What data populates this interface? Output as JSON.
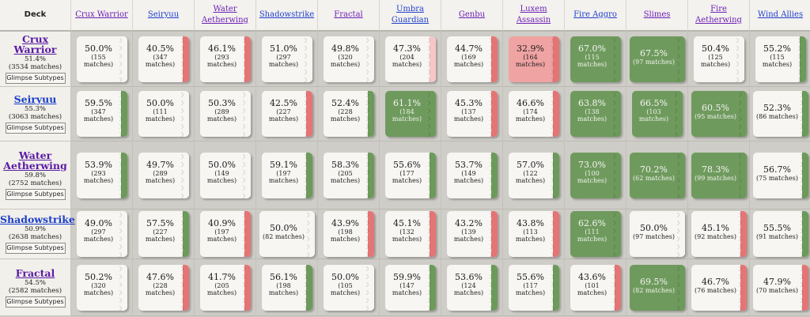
{
  "header": {
    "deck_label": "Deck",
    "columns": [
      {
        "label": "Crux Warrior",
        "color": "purple"
      },
      {
        "label": "Seiryuu",
        "color": "blue"
      },
      {
        "label": "Water Aetherwing",
        "color": "purple"
      },
      {
        "label": "Shadowstrike",
        "color": "blue"
      },
      {
        "label": "Fractal",
        "color": "purple"
      },
      {
        "label": "Umbra Guardian",
        "color": "blue"
      },
      {
        "label": "Genbu",
        "color": "purple"
      },
      {
        "label": "Luxem Assassin",
        "color": "purple"
      },
      {
        "label": "Fire Aggro",
        "color": "blue"
      },
      {
        "label": "Slimes",
        "color": "purple"
      },
      {
        "label": "Fire Aetherwing",
        "color": "purple"
      },
      {
        "label": "Wind Allies",
        "color": "blue"
      }
    ]
  },
  "glimpse_label": "Glimpse Subtypes",
  "rows": [
    {
      "name": "Crux Warrior",
      "color": "purple",
      "winrate": "51.4%",
      "matches": "(3534 matches)",
      "cells": [
        {
          "pct": "50.0%",
          "cnt": "(155 matches)",
          "bg": "white",
          "strip": "white"
        },
        {
          "pct": "40.5%",
          "cnt": "(347 matches)",
          "bg": "white",
          "strip": "red"
        },
        {
          "pct": "46.1%",
          "cnt": "(293 matches)",
          "bg": "white",
          "strip": "red"
        },
        {
          "pct": "51.0%",
          "cnt": "(297 matches)",
          "bg": "white",
          "strip": "white"
        },
        {
          "pct": "49.8%",
          "cnt": "(320 matches)",
          "bg": "white",
          "strip": "white"
        },
        {
          "pct": "47.3%",
          "cnt": "(204 matches)",
          "bg": "white",
          "strip": "pink"
        },
        {
          "pct": "44.7%",
          "cnt": "(169 matches)",
          "bg": "white",
          "strip": "red"
        },
        {
          "pct": "32.9%",
          "cnt": "(164 matches)",
          "bg": "red",
          "strip": "red"
        },
        {
          "pct": "67.0%",
          "cnt": "(115 matches)",
          "bg": "green",
          "strip": "green"
        },
        {
          "pct": "67.5%",
          "cnt": "(97 matches)",
          "bg": "green",
          "strip": "green",
          "compact": true
        },
        {
          "pct": "50.4%",
          "cnt": "(125 matches)",
          "bg": "white",
          "strip": "white"
        },
        {
          "pct": "55.2%",
          "cnt": "(115 matches)",
          "bg": "white",
          "strip": "green"
        }
      ]
    },
    {
      "name": "Seiryuu",
      "color": "blue",
      "winrate": "55.3%",
      "matches": "(3063 matches)",
      "cells": [
        {
          "pct": "59.5%",
          "cnt": "(347 matches)",
          "bg": "white",
          "strip": "green"
        },
        {
          "pct": "50.0%",
          "cnt": "(111 matches)",
          "bg": "white",
          "strip": "white"
        },
        {
          "pct": "50.3%",
          "cnt": "(289 matches)",
          "bg": "white",
          "strip": "white"
        },
        {
          "pct": "42.5%",
          "cnt": "(227 matches)",
          "bg": "white",
          "strip": "red"
        },
        {
          "pct": "52.4%",
          "cnt": "(228 matches)",
          "bg": "white",
          "strip": "green"
        },
        {
          "pct": "61.1%",
          "cnt": "(184 matches)",
          "bg": "green",
          "strip": "green"
        },
        {
          "pct": "45.3%",
          "cnt": "(137 matches)",
          "bg": "white",
          "strip": "red"
        },
        {
          "pct": "46.6%",
          "cnt": "(174 matches)",
          "bg": "white",
          "strip": "red"
        },
        {
          "pct": "63.8%",
          "cnt": "(138 matches)",
          "bg": "green",
          "strip": "green"
        },
        {
          "pct": "66.5%",
          "cnt": "(103 matches)",
          "bg": "green",
          "strip": "green"
        },
        {
          "pct": "60.5%",
          "cnt": "(95 matches)",
          "bg": "green",
          "strip": "green",
          "compact": true
        },
        {
          "pct": "52.3%",
          "cnt": "(86 matches)",
          "bg": "white",
          "strip": "green",
          "compact": true
        }
      ]
    },
    {
      "name": "Water Aetherwing",
      "color": "purple",
      "winrate": "59.8%",
      "matches": "(2752 matches)",
      "cells": [
        {
          "pct": "53.9%",
          "cnt": "(293 matches)",
          "bg": "white",
          "strip": "green"
        },
        {
          "pct": "49.7%",
          "cnt": "(289 matches)",
          "bg": "white",
          "strip": "white"
        },
        {
          "pct": "50.0%",
          "cnt": "(149 matches)",
          "bg": "white",
          "strip": "white"
        },
        {
          "pct": "59.1%",
          "cnt": "(197 matches)",
          "bg": "white",
          "strip": "green"
        },
        {
          "pct": "58.3%",
          "cnt": "(205 matches)",
          "bg": "white",
          "strip": "green"
        },
        {
          "pct": "55.6%",
          "cnt": "(177 matches)",
          "bg": "white",
          "strip": "green"
        },
        {
          "pct": "53.7%",
          "cnt": "(149 matches)",
          "bg": "white",
          "strip": "green"
        },
        {
          "pct": "57.0%",
          "cnt": "(122 matches)",
          "bg": "white",
          "strip": "green"
        },
        {
          "pct": "73.0%",
          "cnt": "(100 matches)",
          "bg": "green",
          "strip": "green"
        },
        {
          "pct": "70.2%",
          "cnt": "(62 matches)",
          "bg": "green",
          "strip": "green",
          "compact": true
        },
        {
          "pct": "78.3%",
          "cnt": "(99 matches)",
          "bg": "green",
          "strip": "green",
          "compact": true
        },
        {
          "pct": "56.7%",
          "cnt": "(75 matches)",
          "bg": "white",
          "strip": "green",
          "compact": true
        }
      ]
    },
    {
      "name": "Shadowstrike",
      "color": "blue",
      "winrate": "50.9%",
      "matches": "(2638 matches)",
      "cells": [
        {
          "pct": "49.0%",
          "cnt": "(297 matches)",
          "bg": "white",
          "strip": "white"
        },
        {
          "pct": "57.5%",
          "cnt": "(227 matches)",
          "bg": "white",
          "strip": "green"
        },
        {
          "pct": "40.9%",
          "cnt": "(197 matches)",
          "bg": "white",
          "strip": "red"
        },
        {
          "pct": "50.0%",
          "cnt": "(82 matches)",
          "bg": "white",
          "strip": "white",
          "compact": true
        },
        {
          "pct": "43.9%",
          "cnt": "(198 matches)",
          "bg": "white",
          "strip": "red"
        },
        {
          "pct": "45.1%",
          "cnt": "(132 matches)",
          "bg": "white",
          "strip": "red"
        },
        {
          "pct": "43.2%",
          "cnt": "(139 matches)",
          "bg": "white",
          "strip": "red"
        },
        {
          "pct": "43.8%",
          "cnt": "(113 matches)",
          "bg": "white",
          "strip": "red"
        },
        {
          "pct": "62.6%",
          "cnt": "(111 matches)",
          "bg": "green",
          "strip": "green"
        },
        {
          "pct": "50.0%",
          "cnt": "(97 matches)",
          "bg": "white",
          "strip": "white",
          "compact": true
        },
        {
          "pct": "45.1%",
          "cnt": "(92 matches)",
          "bg": "white",
          "strip": "red",
          "compact": true
        },
        {
          "pct": "55.5%",
          "cnt": "(91 matches)",
          "bg": "white",
          "strip": "green",
          "compact": true
        }
      ]
    },
    {
      "name": "Fractal",
      "color": "purple",
      "winrate": "54.5%",
      "matches": "(2582 matches)",
      "cells": [
        {
          "pct": "50.2%",
          "cnt": "(320 matches)",
          "bg": "white",
          "strip": "white"
        },
        {
          "pct": "47.6%",
          "cnt": "(228 matches)",
          "bg": "white",
          "strip": "red"
        },
        {
          "pct": "41.7%",
          "cnt": "(205 matches)",
          "bg": "white",
          "strip": "red"
        },
        {
          "pct": "56.1%",
          "cnt": "(198 matches)",
          "bg": "white",
          "strip": "green"
        },
        {
          "pct": "50.0%",
          "cnt": "(105 matches)",
          "bg": "white",
          "strip": "white"
        },
        {
          "pct": "59.9%",
          "cnt": "(147 matches)",
          "bg": "white",
          "strip": "green"
        },
        {
          "pct": "53.6%",
          "cnt": "(124 matches)",
          "bg": "white",
          "strip": "green"
        },
        {
          "pct": "55.6%",
          "cnt": "(117 matches)",
          "bg": "white",
          "strip": "green"
        },
        {
          "pct": "43.6%",
          "cnt": "(101 matches)",
          "bg": "white",
          "strip": "red"
        },
        {
          "pct": "69.5%",
          "cnt": "(82 matches)",
          "bg": "green",
          "strip": "green",
          "compact": true
        },
        {
          "pct": "46.7%",
          "cnt": "(76 matches)",
          "bg": "white",
          "strip": "red",
          "compact": true
        },
        {
          "pct": "47.9%",
          "cnt": "(70 matches)",
          "bg": "white",
          "strip": "red",
          "compact": true
        }
      ]
    }
  ]
}
